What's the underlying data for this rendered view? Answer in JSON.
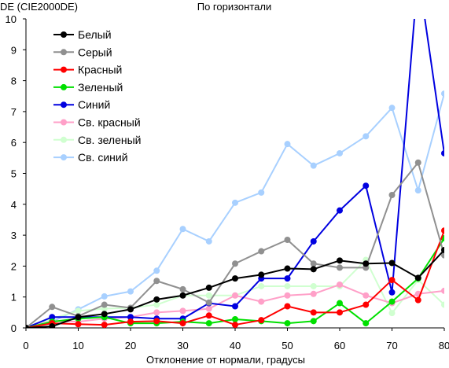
{
  "chart_data": {
    "type": "line",
    "title": "По горизонтали",
    "ylabel": "DE (CIE2000DE)",
    "xlabel": "Отклонение от нормали, градусы",
    "xlim": [
      0,
      80
    ],
    "ylim": [
      0,
      10
    ],
    "xticks": [
      0,
      10,
      20,
      30,
      40,
      50,
      60,
      70,
      80
    ],
    "yticks": [
      0,
      1,
      2,
      3,
      4,
      5,
      6,
      7,
      8,
      9,
      10
    ],
    "grid": false,
    "legend": "top-left",
    "x": [
      0,
      5,
      10,
      15,
      20,
      25,
      30,
      35,
      40,
      45,
      50,
      55,
      60,
      65,
      70,
      75,
      80
    ],
    "series": [
      {
        "name": "Белый",
        "color": "#000000",
        "values": [
          0,
          0.05,
          0.35,
          0.45,
          0.6,
          0.92,
          1.05,
          1.3,
          1.6,
          1.72,
          1.92,
          1.9,
          2.18,
          2.08,
          2.1,
          1.62,
          2.52
        ]
      },
      {
        "name": "Серый",
        "color": "#909090",
        "values": [
          0,
          0.68,
          0.38,
          0.75,
          0.65,
          1.52,
          1.25,
          0.82,
          2.08,
          2.48,
          2.85,
          2.08,
          1.95,
          1.95,
          4.3,
          5.35,
          2.35
        ]
      },
      {
        "name": "Красный",
        "color": "#ff0000",
        "values": [
          0,
          0.15,
          0.12,
          0.1,
          0.2,
          0.22,
          0.15,
          0.4,
          0.1,
          0.25,
          0.7,
          0.5,
          0.5,
          0.75,
          1.55,
          0.9,
          3.15
        ]
      },
      {
        "name": "Зеленый",
        "color": "#00e000",
        "values": [
          0,
          0.2,
          0.3,
          0.35,
          0.15,
          0.15,
          0.2,
          0.15,
          0.28,
          0.22,
          0.15,
          0.22,
          0.8,
          0.15,
          0.85,
          1.6,
          2.9
        ]
      },
      {
        "name": "Синий",
        "color": "#0000e0",
        "values": [
          0,
          0.35,
          0.35,
          0.35,
          0.35,
          0.3,
          0.3,
          0.8,
          0.7,
          1.6,
          1.6,
          2.8,
          3.8,
          4.6,
          1.15,
          11.5,
          5.65
        ]
      },
      {
        "name": "Св. красный",
        "color": "#ffa0c8",
        "values": [
          0,
          0.22,
          0.2,
          0.3,
          0.35,
          0.5,
          0.55,
          0.62,
          1.05,
          0.85,
          1.05,
          1.1,
          1.4,
          1.05,
          0.8,
          1.1,
          1.2
        ]
      },
      {
        "name": "Св. зеленый",
        "color": "#d0ffd0",
        "values": [
          0,
          0.3,
          0.55,
          0.62,
          0.65,
          0.75,
          1.05,
          1.05,
          1.05,
          1.35,
          1.35,
          1.35,
          1.35,
          2.2,
          0.48,
          1.55,
          0.75
        ]
      },
      {
        "name": "Св. синий",
        "color": "#a8d0ff",
        "values": [
          0,
          0.2,
          0.6,
          1.02,
          1.18,
          1.85,
          3.2,
          2.8,
          4.05,
          4.38,
          5.95,
          5.25,
          5.65,
          6.2,
          7.12,
          4.45,
          7.58
        ]
      }
    ]
  }
}
